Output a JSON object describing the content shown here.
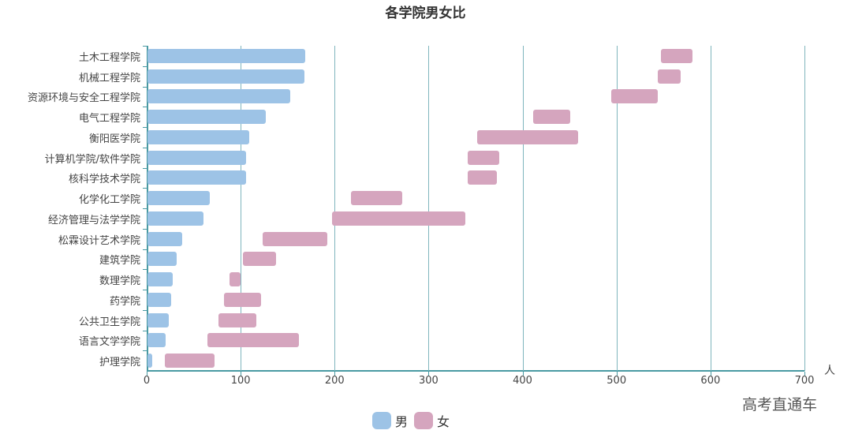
{
  "chart_data": {
    "type": "bar",
    "orientation": "horizontal",
    "title": "各学院男女比",
    "xlabel": "人",
    "ylabel": "",
    "xlim": [
      0,
      700
    ],
    "xticks": [
      "0",
      "100",
      "200",
      "300",
      "400",
      "500",
      "600",
      "700"
    ],
    "grid": true,
    "legend_position": "bottom",
    "categories": [
      "土木工程学院",
      "机械工程学院",
      "资源环境与安全工程学院",
      "电气工程学院",
      "衡阳医学院",
      "计算机学院/软件学院",
      "核科学技术学院",
      "化学化工学院",
      "经济管理与法学学院",
      "松霖设计艺术学院",
      "建筑学院",
      "数理学院",
      "药学院",
      "公共卫生学院",
      "语言文学学院",
      "护理学院"
    ],
    "series": [
      {
        "name": "男",
        "color": "#9dc3e6",
        "values": [
          168,
          167,
          152,
          126,
          108,
          105,
          105,
          66,
          60,
          37,
          31,
          27,
          25,
          23,
          19,
          5
        ]
      },
      {
        "name": "女",
        "color": "#d5a5be",
        "start": [
          547,
          544,
          494,
          411,
          352,
          342,
          342,
          217,
          197,
          123,
          102,
          88,
          82,
          76,
          65,
          19
        ],
        "end": [
          581,
          568,
          544,
          451,
          459,
          375,
          373,
          272,
          339,
          192,
          138,
          100,
          122,
          117,
          162,
          72
        ]
      }
    ]
  },
  "watermark": "高考直通车",
  "legend": [
    {
      "label": "男",
      "color": "#9dc3e6"
    },
    {
      "label": "女",
      "color": "#d5a5be"
    }
  ]
}
